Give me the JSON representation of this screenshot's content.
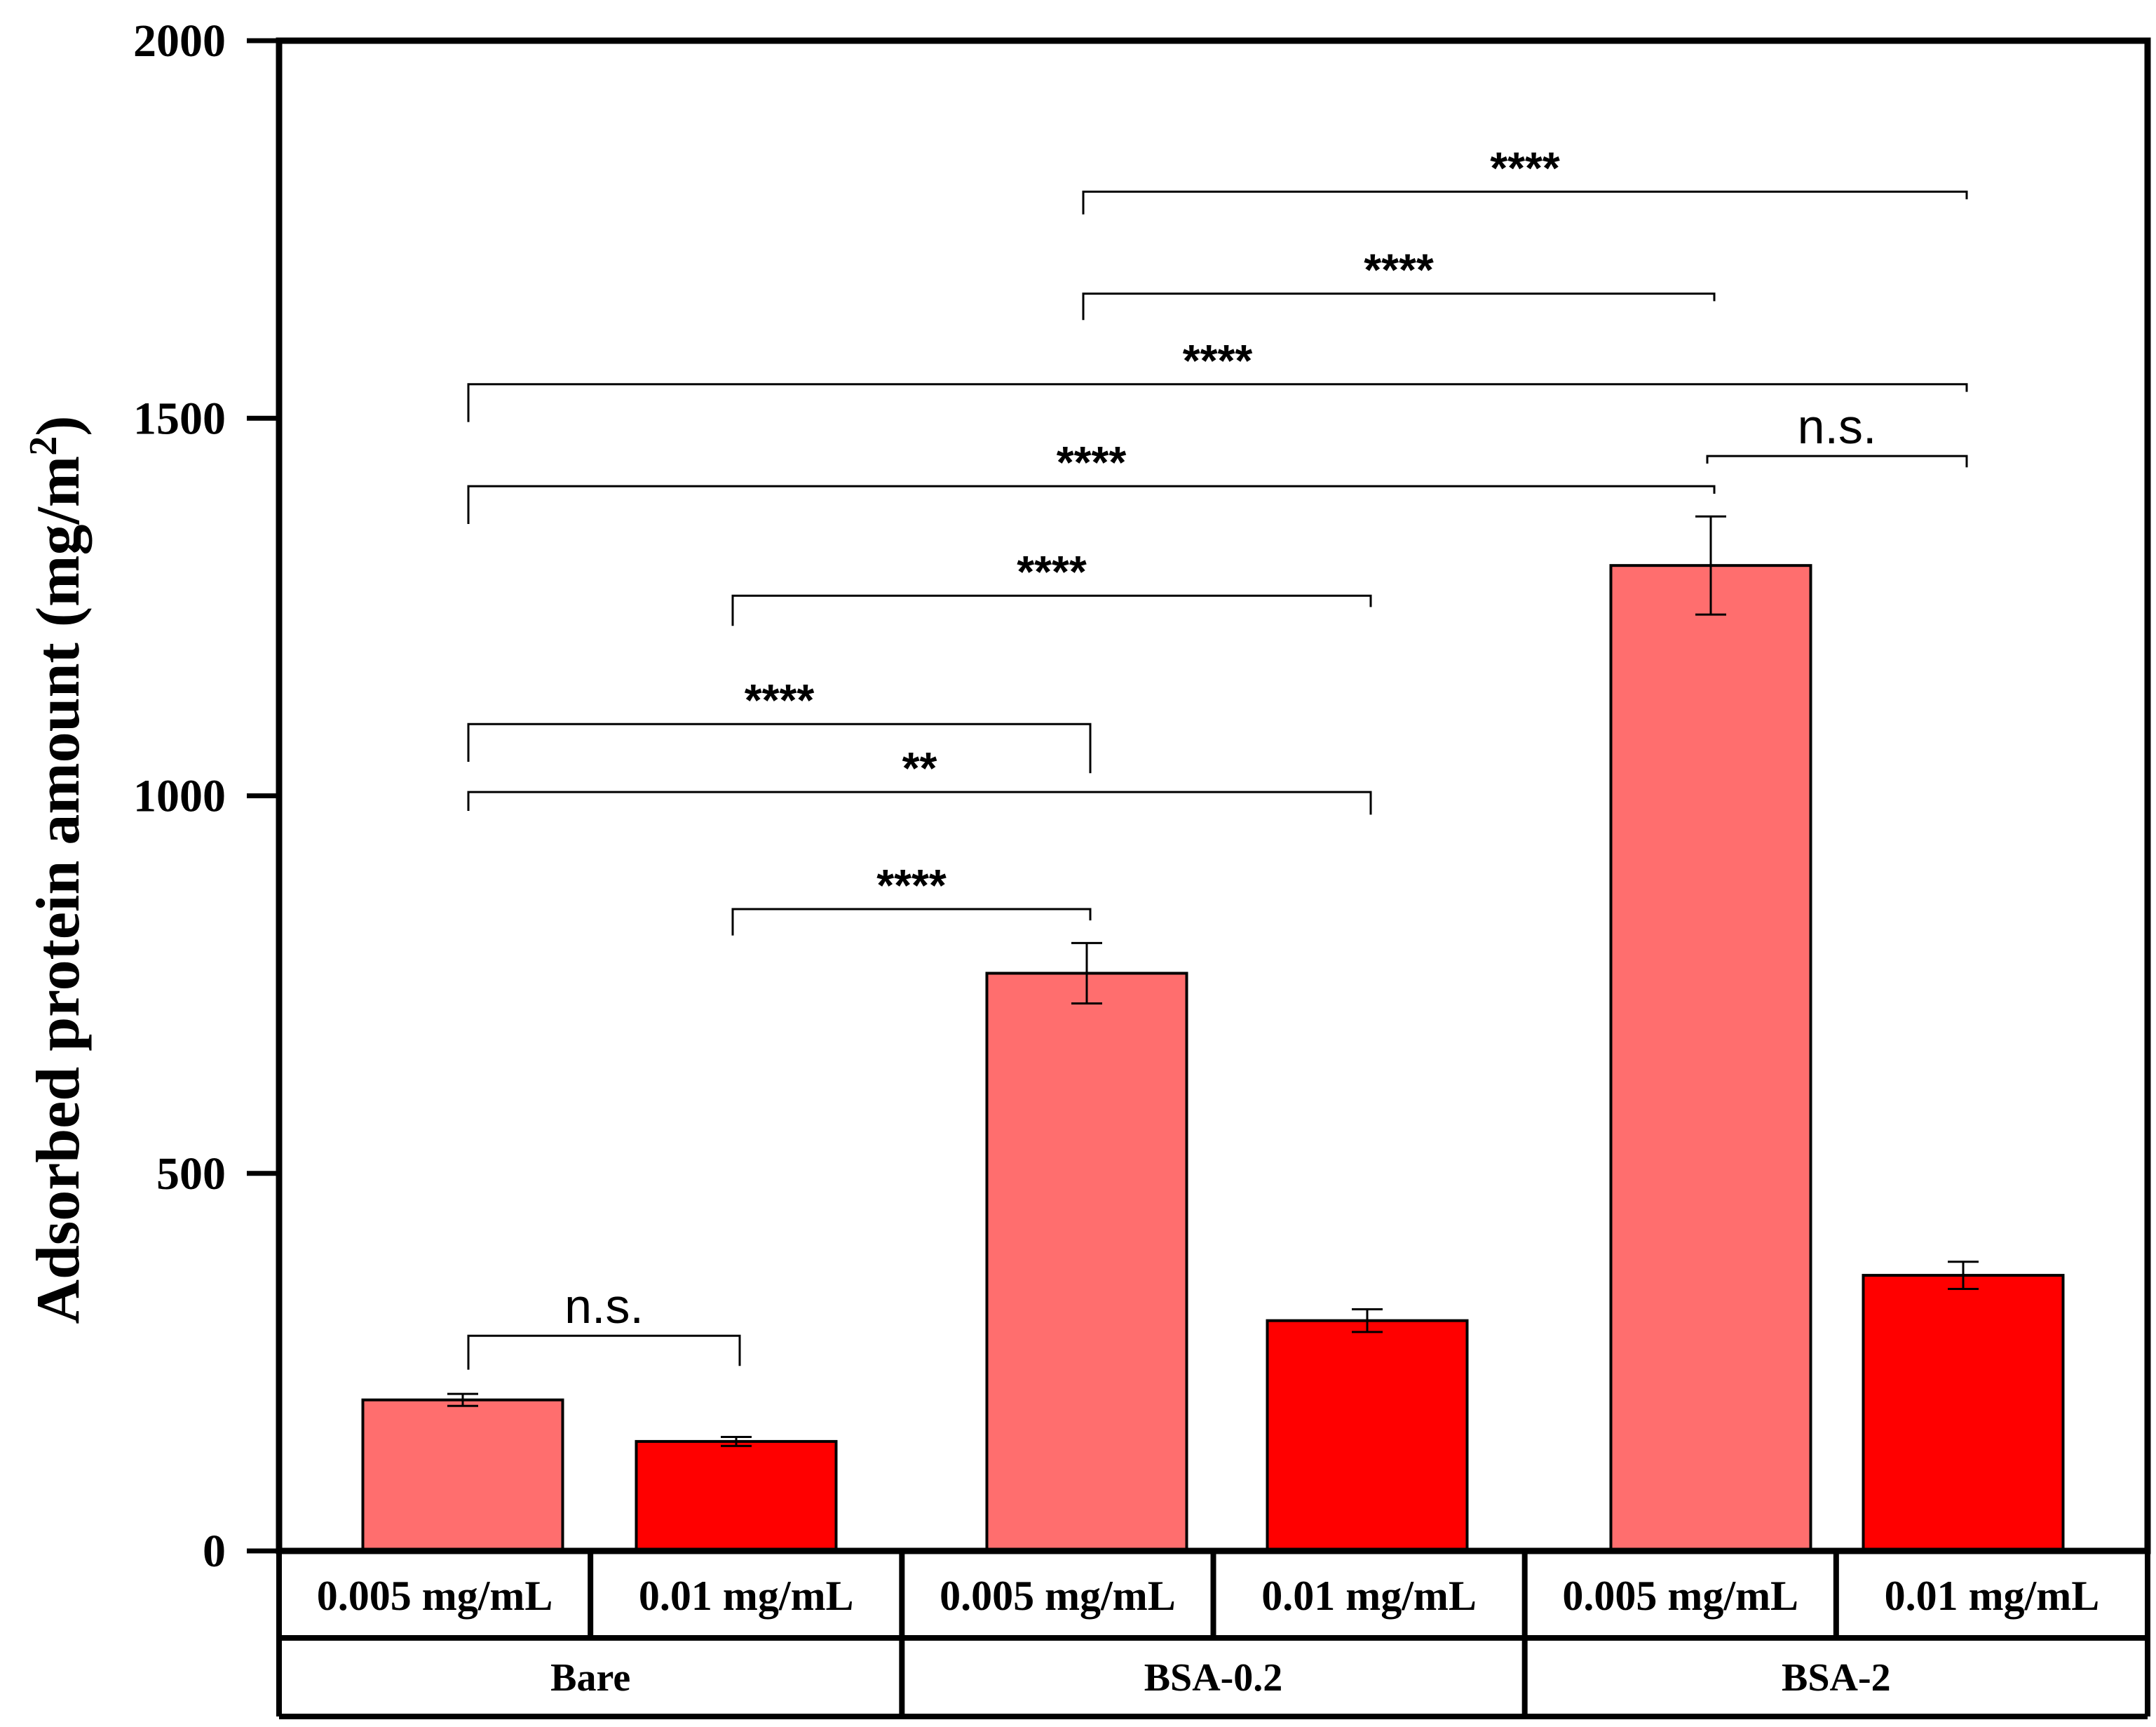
{
  "chart_data": {
    "type": "bar",
    "ylabel": "Adsorbed protein amount (mg/m",
    "ylabel_superscript": "2",
    "ylabel_close": ")",
    "ylim": [
      0,
      2000
    ],
    "yticks": [
      "0",
      "500",
      "1000",
      "1500",
      "2000"
    ],
    "groups": [
      "Bare",
      "BSA-0.2",
      "BSA-2"
    ],
    "categories": [
      "0.005 mg/mL",
      "0.01 mg/mL",
      "0.005 mg/mL",
      "0.01 mg/mL",
      "0.005 mg/mL",
      "0.01 mg/mL"
    ],
    "values": [
      200,
      145,
      765,
      305,
      1305,
      365
    ],
    "errors": [
      8,
      6,
      40,
      15,
      65,
      18
    ],
    "colors": [
      "#FF6E6E",
      "#FF0000",
      "#FF6E6E",
      "#FF0000",
      "#FF6E6E",
      "#FF0000"
    ],
    "significance": [
      {
        "from": 0,
        "to": 1,
        "label": "n.s.",
        "level": 285,
        "left_drop": 45,
        "right_drop": 40
      },
      {
        "from": 1,
        "to": 2,
        "label": "****",
        "level": 850,
        "left_drop": 35,
        "right_drop": 15
      },
      {
        "from": 0,
        "to": 3,
        "label": "**",
        "level": 1005,
        "left_drop": 25,
        "right_drop": 30
      },
      {
        "from": 0,
        "to": 2,
        "label": "****",
        "level": 1095,
        "left_drop": 50,
        "right_drop": 65
      },
      {
        "from": 1,
        "to": 3,
        "label": "****",
        "level": 1265,
        "left_drop": 40,
        "right_drop": 15
      },
      {
        "from": 0,
        "to": 4,
        "label": "****",
        "level": 1410,
        "left_drop": 50,
        "right_drop": 10
      },
      {
        "from": 4,
        "to": 5,
        "label": "n.s.",
        "level": 1450,
        "left_drop": 10,
        "right_drop": 15
      },
      {
        "from": 0,
        "to": 5,
        "label": "****",
        "level": 1545,
        "left_drop": 50,
        "right_drop": 10
      },
      {
        "from": 2,
        "to": 4,
        "label": "****",
        "level": 1665,
        "left_drop": 35,
        "right_drop": 10
      },
      {
        "from": 2,
        "to": 5,
        "label": "****",
        "level": 1800,
        "left_drop": 30,
        "right_drop": 10
      }
    ]
  }
}
